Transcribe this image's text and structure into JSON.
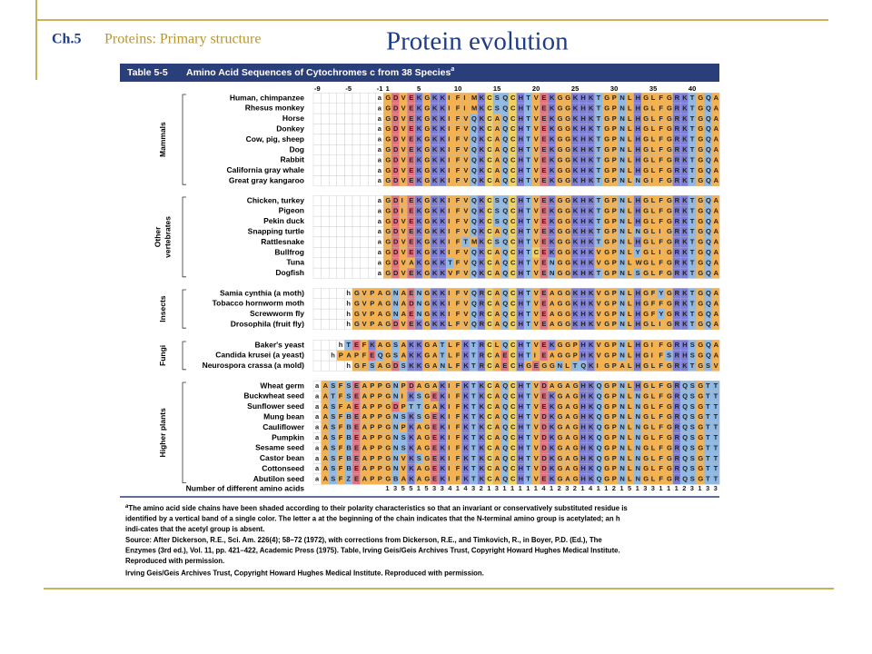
{
  "header": {
    "chapter": "Ch.5",
    "subtitle": "Proteins: Primary structure",
    "title": "Protein evolution"
  },
  "table": {
    "label": "Table 5-5",
    "caption": "Amino Acid Sequences of Cytochromes c from 38 Species",
    "caption_note": "a",
    "column_numbers": [
      -9,
      -5,
      -1,
      1,
      5,
      10,
      15,
      20,
      25,
      30,
      35,
      40
    ],
    "groups": [
      {
        "name_lines": [
          "Mammals"
        ],
        "rows": [
          {
            "species": "Human, chimpanzee",
            "sequence": "        aGDVEKGKKIFIMKCSQCHTVEKGGKHKTGPNLHGLFGRKTGQA"
          },
          {
            "species": "Rhesus monkey",
            "sequence": "        aGDVEKGKKIFIMKCSQCHTVEKGGKHKTGPNLHGLFGRKTGQA"
          },
          {
            "species": "Horse",
            "sequence": "        aGDVEKGKKIFVQKCAQCHTVEKGGKHKTGPNLHGLFGRKTGQA"
          },
          {
            "species": "Donkey",
            "sequence": "        aGDVEKGKKIFVQKCAQCHTVEKGGKHKTGPNLHGLFGRKTGQA"
          },
          {
            "species": "Cow, pig, sheep",
            "sequence": "        aGDVEKGKKIFVQKCAQCHTVEKGGKHKTGPNLHGLFGRKTGQA"
          },
          {
            "species": "Dog",
            "sequence": "        aGDVEKGKKIFVQKCAQCHTVEKGGKHKTGPNLHGLFGRKTGQA"
          },
          {
            "species": "Rabbit",
            "sequence": "        aGDVEKGKKIFVQKCAQCHTVEKGGKHKTGPNLHGLFGRKTGQA"
          },
          {
            "species": "California gray whale",
            "sequence": "        aGDVEKGKKIFVQKCAQCHTVEKGGKHKTGPNLHGLFGRKTGQA"
          },
          {
            "species": "Great gray kangaroo",
            "sequence": "        aGDVEKGKKIFVQKCAQCHTVEKGGKHKTGPNLNGIFGRKTGQA"
          }
        ]
      },
      {
        "name_lines": [
          "Other",
          "vertebrates"
        ],
        "rows": [
          {
            "species": "Chicken, turkey",
            "sequence": "        aGDIEKGKKIFVQKCSQCHTVEKGGKHKTGPNLHGLFGRKTGQA"
          },
          {
            "species": "Pigeon",
            "sequence": "        aGDIEKGKKIFVQKCSQCHTVEKGGKHKTGPNLHGLFGRKTGQA"
          },
          {
            "species": "Pekin duck",
            "sequence": "        aGDVEKGKKIFVQKCSQCHTVEKGGKHKTGPNLHGLFGRKTGQA"
          },
          {
            "species": "Snapping turtle",
            "sequence": "        aGDVEKGKKIFVQKCAQCHTVEKGGKHKTGPNLNGLIGRKTGQA"
          },
          {
            "species": "Rattlesnake",
            "sequence": "        aGDVEKGKKIFTMKCSQCHTVEKGGKHKTGPNLHGLFGRKTGQA"
          },
          {
            "species": "Bullfrog",
            "sequence": "        aGDVEKGKKIFVQKCAQCHTCEKGGKHKVGPNLYGLIGRKTGQA"
          },
          {
            "species": "Tuna",
            "sequence": "        aGDVAKGKKTFVQKCAQCHTVENGGKHKVGPNLWGLFGRKTGQA"
          },
          {
            "species": "Dogfish",
            "sequence": "        aGDVEKGKKVFVQKCAQCHTVENGGKHKTGPNLSGLFGRKTGQA"
          }
        ]
      },
      {
        "name_lines": [
          "Insects"
        ],
        "rows": [
          {
            "species": "Samia cynthia (a moth)",
            "sequence": "    hGVPAGNAENGKKIFVQRCAQCHTVEAGGKHKVGPNLHGFYGRKTGQA"
          },
          {
            "species": "Tobacco hornworm moth",
            "sequence": "    hGVPAGNADNGKKIFVQRCAQCHTVEAGGKHKVGPNLHGFFGRKTGQA"
          },
          {
            "species": "Screwworm fly",
            "sequence": "    hGVPAGNAENGKKIFVQRCAQCHTVEAGGKHKVGPNLHGFYGRKTGQA"
          },
          {
            "species": "Drosophila (fruit fly)",
            "sequence": "    hGVPAGDVEKGKKLFVQRCAQCHTVEAGGKHKVGPNLHGLIGRKTGQA"
          }
        ]
      },
      {
        "name_lines": [
          "Fungi"
        ],
        "rows": [
          {
            "species": "Baker's yeast",
            "sequence": "   hTEFKAGSAKKGATLFKTRCLQCHTVEKGGPHKVGPNLHGIFGRHSGQA"
          },
          {
            "species": "Candida krusei (a yeast)",
            "sequence": "  hPAPFEQGSAKKGATLFKTRCAECHTIEAGGPHKVGPNLHGIFSRHSGQA"
          },
          {
            "species": "Neurospora crassa (a mold)",
            "sequence": "    hGFSAGDSKKGANLFKTRCAECHGEGGNLTQKIGPALHGLFGRKTGSV"
          }
        ]
      },
      {
        "name_lines": [
          "Higher plants"
        ],
        "rows": [
          {
            "species": "Wheat germ",
            "sequence": "aASFSEAPPGNPDAGAKIFKTKCAQCHTVDAGAGHKQGPNLHGLFGRQSGTT"
          },
          {
            "species": "Buckwheat seed",
            "sequence": "aATFSEAPPGNIKSGEKIFKTKCAQCHTVEKGAGHKQGPNLNGLFGRQSGTT"
          },
          {
            "species": "Sunflower seed",
            "sequence": "aASFAEAPPGDPTTGAKIFKTKCAQCHTVEKGAGHKQGPNLNGLFGRQSGTT"
          },
          {
            "species": "Mung bean",
            "sequence": "aASFBEAPPGNSKSGEKIFKTKCAQCHTVDKGAGHKQGPNLNGLFGRQSGTT"
          },
          {
            "species": "Cauliflower",
            "sequence": "aASFBEAPPGNPKAGEKIFKTKCAQCHTVDKGAGHKQGPNLNGLFGRQSGTT"
          },
          {
            "species": "Pumpkin",
            "sequence": "aASFBEAPPGNSKAGEKIFKTKCAQCHTVDKGAGHKQGPNLNGLFGRQSGTT"
          },
          {
            "species": "Sesame seed",
            "sequence": "aASFBEAPPGNSKAGEKIFKTKCAQCHTVDKGAGHKQGPNLNGLFGRQSGTT"
          },
          {
            "species": "Castor bean",
            "sequence": "aASFBEAPPGNVKSGEKIFKTKCAQCHTVDKGAGHKQGPNLNGLFGRQSGTT"
          },
          {
            "species": "Cottonseed",
            "sequence": "aASFBEAPPGNVKAGEKIFKTKCAQCHTVDKGAGHKQGPNLNGLFGRQSGTT"
          },
          {
            "species": "Abutilon seed",
            "sequence": "aASFZEAPPGBAKAGEKIFKTKCAQCHTVEKGAGHKQGPNLNGLFGRQSGTT"
          }
        ]
      }
    ],
    "count_label": "Number of different amino acids",
    "counts": "         1355153341432131111141232141121513311123133",
    "footnotes": [
      "The amino acid side chains have been shaded according to their polarity characteristics so that an invariant or conservatively substituted residue is",
      "identified by a vertical band of a single color. The letter a at the beginning of the chain indicates that the N-terminal amino group is acetylated; an h",
      "indi-cates that the acetyl group is absent.",
      "Source: After Dickerson, R.E., Sci. Am. 226(4); 58–72 (1972), with corrections from Dickerson, R.E., and Timkovich, R., in Boyer, P.D. (Ed.), The",
      "Enzymes (3rd ed.), Vol. 11, pp. 421–422, Academic Press (1975). Table, Irving Geis/Geis Archives Trust, Copyright Howard Hughes Medical Institute.",
      "Reproduced with permission.",
      "Irving Geis/Geis Archives Trust, Copyright Howard Hughes Medical Institute. Reproduced with permission."
    ],
    "residue_colors": {
      "G": "#f3b24f",
      "A": "#f3b24f",
      "V": "#f3b24f",
      "L": "#f3b24f",
      "I": "#f3b24f",
      "M": "#f3b24f",
      "F": "#f3b24f",
      "W": "#f3b24f",
      "P": "#f3b24f",
      "C": "#f5d35a",
      "S": "#8fb8e3",
      "T": "#8fb8e3",
      "N": "#8fb8e3",
      "Q": "#8fb8e3",
      "Y": "#8fb8e3",
      "B": "#8fb8e3",
      "Z": "#8fb8e3",
      "K": "#7d7fd6",
      "R": "#7d7fd6",
      "H": "#7d7fd6",
      "D": "#e2727e",
      "E": "#e2727e"
    }
  }
}
